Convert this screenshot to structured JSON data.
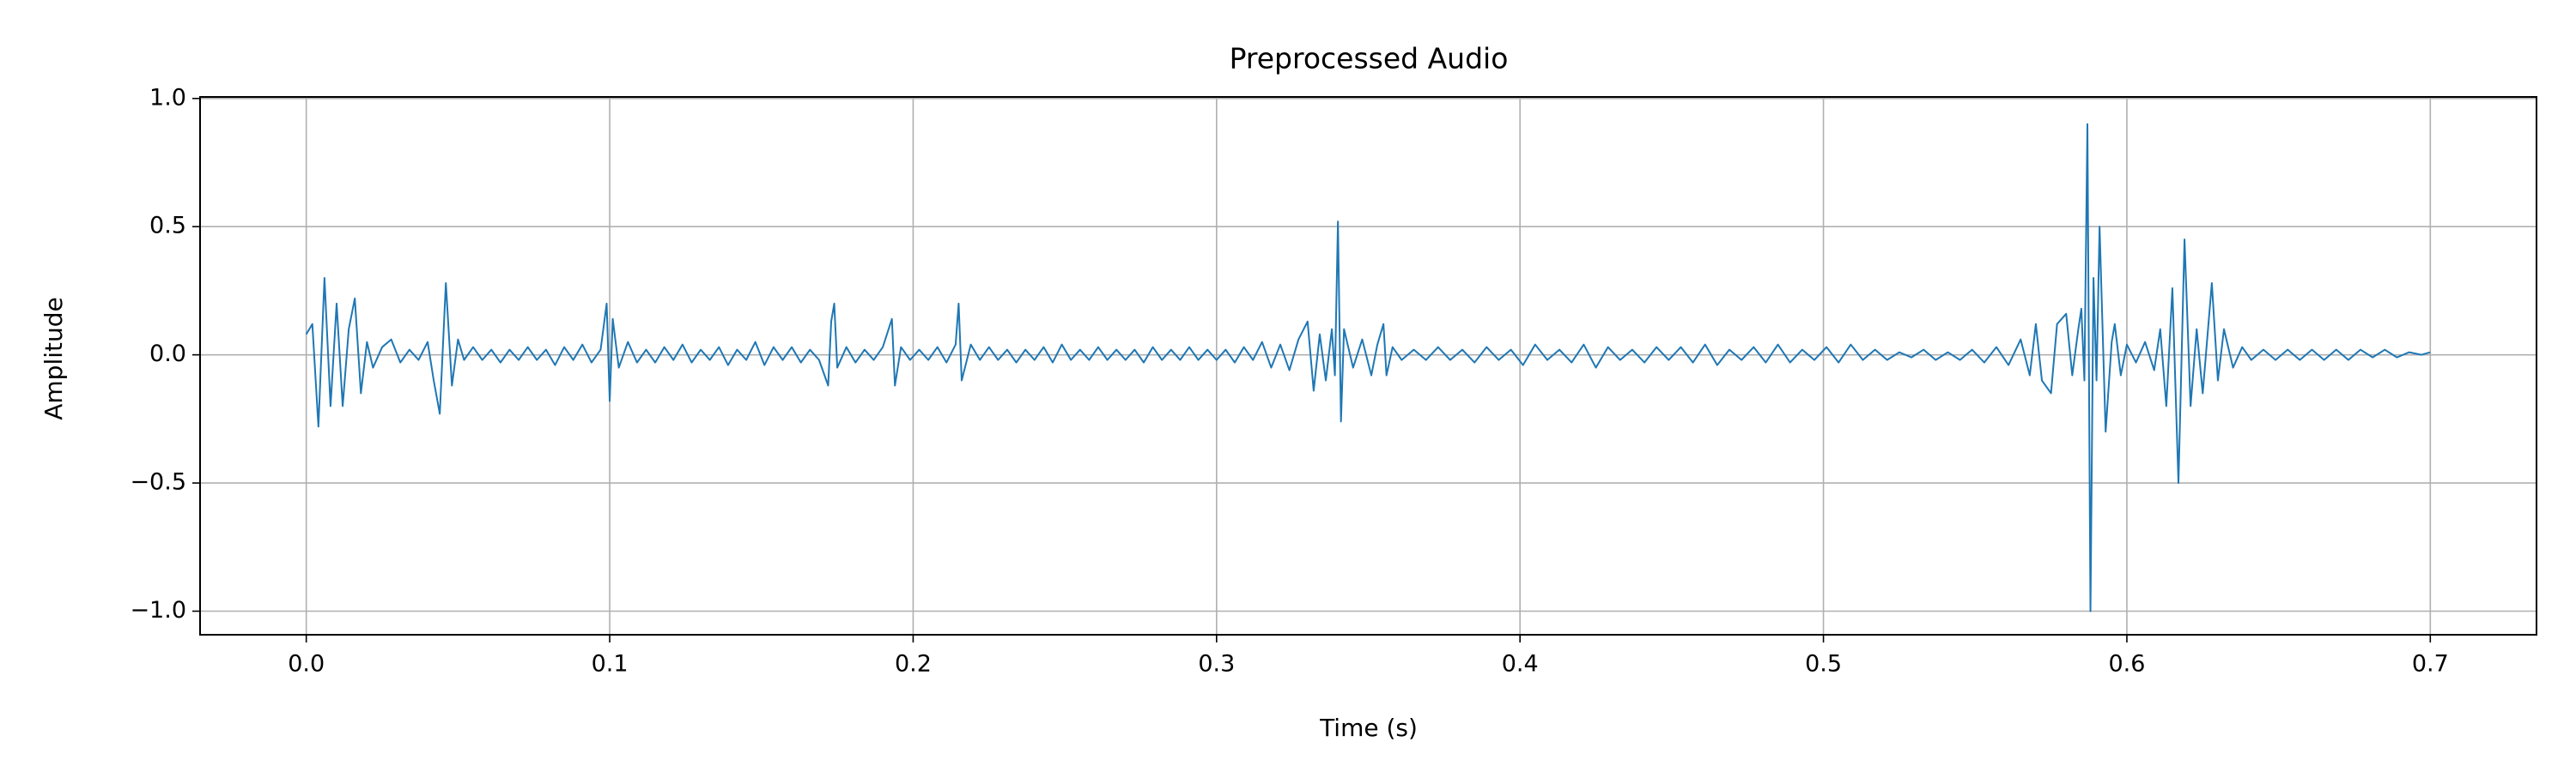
{
  "chart_data": {
    "type": "line",
    "title": "Preprocessed Audio",
    "xlabel": "Time (s)",
    "ylabel": "Amplitude",
    "grid": true,
    "xlim": [
      -0.035,
      0.735
    ],
    "ylim": [
      -1.092,
      1.006
    ],
    "xticks": [
      {
        "value": 0,
        "label": "0.0"
      },
      {
        "value": 0.1,
        "label": "0.1"
      },
      {
        "value": 0.2,
        "label": "0.2"
      },
      {
        "value": 0.3,
        "label": "0.3"
      },
      {
        "value": 0.4,
        "label": "0.4"
      },
      {
        "value": 0.5,
        "label": "0.5"
      },
      {
        "value": 0.6,
        "label": "0.6"
      },
      {
        "value": 0.7,
        "label": "0.7"
      }
    ],
    "yticks": [
      {
        "value": -1,
        "label": "−1.0"
      },
      {
        "value": -0.5,
        "label": "−0.5"
      },
      {
        "value": 0,
        "label": "0.0"
      },
      {
        "value": 0.5,
        "label": "0.5"
      },
      {
        "value": 1,
        "label": "1.0"
      }
    ],
    "series": [
      {
        "color": "#1f77b4",
        "x": [
          0.0,
          0.002,
          0.004,
          0.006,
          0.008,
          0.01,
          0.012,
          0.014,
          0.016,
          0.018,
          0.02,
          0.022,
          0.025,
          0.028,
          0.031,
          0.034,
          0.037,
          0.04,
          0.042,
          0.044,
          0.046,
          0.048,
          0.05,
          0.052,
          0.055,
          0.058,
          0.061,
          0.064,
          0.067,
          0.07,
          0.073,
          0.076,
          0.079,
          0.082,
          0.085,
          0.088,
          0.091,
          0.094,
          0.097,
          0.099,
          0.1,
          0.101,
          0.103,
          0.106,
          0.109,
          0.112,
          0.115,
          0.118,
          0.121,
          0.124,
          0.127,
          0.13,
          0.133,
          0.136,
          0.139,
          0.142,
          0.145,
          0.148,
          0.151,
          0.154,
          0.157,
          0.16,
          0.163,
          0.166,
          0.169,
          0.172,
          0.173,
          0.174,
          0.175,
          0.178,
          0.181,
          0.184,
          0.187,
          0.19,
          0.193,
          0.194,
          0.196,
          0.199,
          0.202,
          0.205,
          0.208,
          0.211,
          0.214,
          0.215,
          0.216,
          0.219,
          0.222,
          0.225,
          0.228,
          0.231,
          0.234,
          0.237,
          0.24,
          0.243,
          0.246,
          0.249,
          0.252,
          0.255,
          0.258,
          0.261,
          0.264,
          0.267,
          0.27,
          0.273,
          0.276,
          0.279,
          0.282,
          0.285,
          0.288,
          0.291,
          0.294,
          0.297,
          0.3,
          0.303,
          0.306,
          0.309,
          0.312,
          0.315,
          0.318,
          0.321,
          0.324,
          0.327,
          0.33,
          0.332,
          0.334,
          0.336,
          0.338,
          0.339,
          0.34,
          0.341,
          0.342,
          0.345,
          0.348,
          0.351,
          0.353,
          0.355,
          0.356,
          0.358,
          0.361,
          0.365,
          0.369,
          0.373,
          0.377,
          0.381,
          0.385,
          0.389,
          0.393,
          0.397,
          0.401,
          0.405,
          0.409,
          0.413,
          0.417,
          0.421,
          0.425,
          0.429,
          0.433,
          0.437,
          0.441,
          0.445,
          0.449,
          0.453,
          0.457,
          0.461,
          0.465,
          0.469,
          0.473,
          0.477,
          0.481,
          0.485,
          0.489,
          0.493,
          0.497,
          0.501,
          0.505,
          0.509,
          0.513,
          0.517,
          0.521,
          0.525,
          0.529,
          0.533,
          0.537,
          0.541,
          0.545,
          0.549,
          0.553,
          0.557,
          0.561,
          0.565,
          0.568,
          0.57,
          0.572,
          0.575,
          0.577,
          0.58,
          0.582,
          0.584,
          0.585,
          0.586,
          0.587,
          0.588,
          0.589,
          0.59,
          0.591,
          0.593,
          0.595,
          0.596,
          0.598,
          0.6,
          0.603,
          0.606,
          0.609,
          0.611,
          0.613,
          0.615,
          0.617,
          0.619,
          0.621,
          0.623,
          0.625,
          0.628,
          0.63,
          0.632,
          0.635,
          0.638,
          0.641,
          0.645,
          0.649,
          0.653,
          0.657,
          0.661,
          0.665,
          0.669,
          0.673,
          0.677,
          0.681,
          0.685,
          0.689,
          0.693,
          0.697,
          0.7
        ],
        "values": [
          0.08,
          0.12,
          -0.28,
          0.3,
          -0.2,
          0.2,
          -0.2,
          0.1,
          0.22,
          -0.15,
          0.05,
          -0.05,
          0.03,
          0.06,
          -0.03,
          0.02,
          -0.02,
          0.05,
          -0.1,
          -0.23,
          0.28,
          -0.12,
          0.06,
          -0.02,
          0.03,
          -0.02,
          0.02,
          -0.03,
          0.02,
          -0.02,
          0.03,
          -0.02,
          0.02,
          -0.04,
          0.03,
          -0.02,
          0.04,
          -0.03,
          0.02,
          0.2,
          -0.18,
          0.14,
          -0.05,
          0.05,
          -0.03,
          0.02,
          -0.03,
          0.03,
          -0.02,
          0.04,
          -0.03,
          0.02,
          -0.02,
          0.03,
          -0.04,
          0.02,
          -0.02,
          0.05,
          -0.04,
          0.03,
          -0.02,
          0.03,
          -0.03,
          0.02,
          -0.02,
          -0.12,
          0.13,
          0.2,
          -0.05,
          0.03,
          -0.03,
          0.02,
          -0.02,
          0.03,
          0.14,
          -0.12,
          0.03,
          -0.02,
          0.02,
          -0.02,
          0.03,
          -0.03,
          0.04,
          0.2,
          -0.1,
          0.04,
          -0.02,
          0.03,
          -0.02,
          0.02,
          -0.03,
          0.02,
          -0.02,
          0.03,
          -0.03,
          0.04,
          -0.02,
          0.02,
          -0.02,
          0.03,
          -0.02,
          0.02,
          -0.02,
          0.02,
          -0.03,
          0.03,
          -0.02,
          0.02,
          -0.02,
          0.03,
          -0.02,
          0.02,
          -0.02,
          0.02,
          -0.03,
          0.03,
          -0.02,
          0.05,
          -0.05,
          0.04,
          -0.06,
          0.06,
          0.13,
          -0.14,
          0.08,
          -0.1,
          0.1,
          -0.08,
          0.52,
          -0.26,
          0.1,
          -0.05,
          0.06,
          -0.08,
          0.04,
          0.12,
          -0.08,
          0.03,
          -0.02,
          0.02,
          -0.02,
          0.03,
          -0.02,
          0.02,
          -0.03,
          0.03,
          -0.02,
          0.02,
          -0.04,
          0.04,
          -0.02,
          0.02,
          -0.03,
          0.04,
          -0.05,
          0.03,
          -0.02,
          0.02,
          -0.03,
          0.03,
          -0.02,
          0.03,
          -0.03,
          0.04,
          -0.04,
          0.02,
          -0.02,
          0.03,
          -0.03,
          0.04,
          -0.03,
          0.02,
          -0.02,
          0.03,
          -0.03,
          0.04,
          -0.02,
          0.02,
          -0.02,
          0.01,
          -0.01,
          0.02,
          -0.02,
          0.01,
          -0.02,
          0.02,
          -0.03,
          0.03,
          -0.04,
          0.06,
          -0.08,
          0.12,
          -0.1,
          -0.15,
          0.12,
          0.16,
          -0.08,
          0.1,
          0.18,
          -0.1,
          0.9,
          -1.0,
          0.3,
          -0.1,
          0.5,
          -0.3,
          0.05,
          0.12,
          -0.08,
          0.04,
          -0.03,
          0.05,
          -0.06,
          0.1,
          -0.2,
          0.26,
          -0.5,
          0.45,
          -0.2,
          0.1,
          -0.15,
          0.28,
          -0.1,
          0.1,
          -0.05,
          0.03,
          -0.02,
          0.02,
          -0.02,
          0.02,
          -0.02,
          0.02,
          -0.02,
          0.02,
          -0.02,
          0.02,
          -0.01,
          0.02,
          -0.01,
          0.01,
          0.0,
          0.01
        ]
      }
    ]
  }
}
